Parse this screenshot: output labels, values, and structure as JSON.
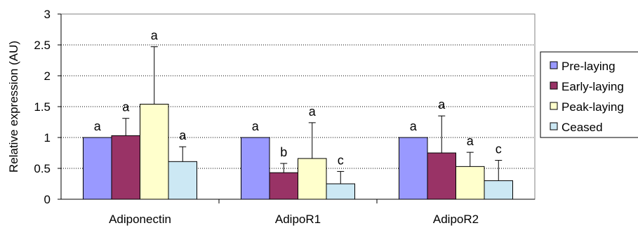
{
  "chart_data": {
    "type": "bar",
    "title": "",
    "xlabel": "",
    "ylabel": "Relative expression (AU)",
    "ylim": [
      0,
      3
    ],
    "yticks": [
      0,
      0.5,
      1,
      1.5,
      2,
      2.5,
      3
    ],
    "ytick_labels": [
      "0",
      "0.5",
      "1",
      "1.5",
      "2",
      "2.5",
      "3"
    ],
    "categories": [
      "Adiponectin",
      "AdipoR1",
      "AdipoR2"
    ],
    "series": [
      {
        "name": "Pre-laying",
        "color": "#9999ff",
        "values": [
          1.0,
          1.0,
          1.0
        ],
        "errors": [
          0,
          0,
          0
        ],
        "letters": [
          "a",
          "a",
          "a"
        ]
      },
      {
        "name": "Early-laying",
        "color": "#993366",
        "values": [
          1.03,
          0.43,
          0.75
        ],
        "errors": [
          0.28,
          0.15,
          0.6
        ],
        "letters": [
          "a",
          "b",
          "a"
        ]
      },
      {
        "name": "Peak-laying",
        "color": "#ffffcc",
        "values": [
          1.54,
          0.66,
          0.53
        ],
        "errors": [
          0.93,
          0.58,
          0.23
        ],
        "letters": [
          "a",
          "a",
          "a"
        ]
      },
      {
        "name": "Ceased",
        "color": "#cce8f4",
        "values": [
          0.61,
          0.25,
          0.3
        ],
        "errors": [
          0.24,
          0.2,
          0.33
        ],
        "letters": [
          "a",
          "c",
          "c"
        ]
      }
    ],
    "grid": "horizontal-dotted",
    "legend_position": "right"
  }
}
